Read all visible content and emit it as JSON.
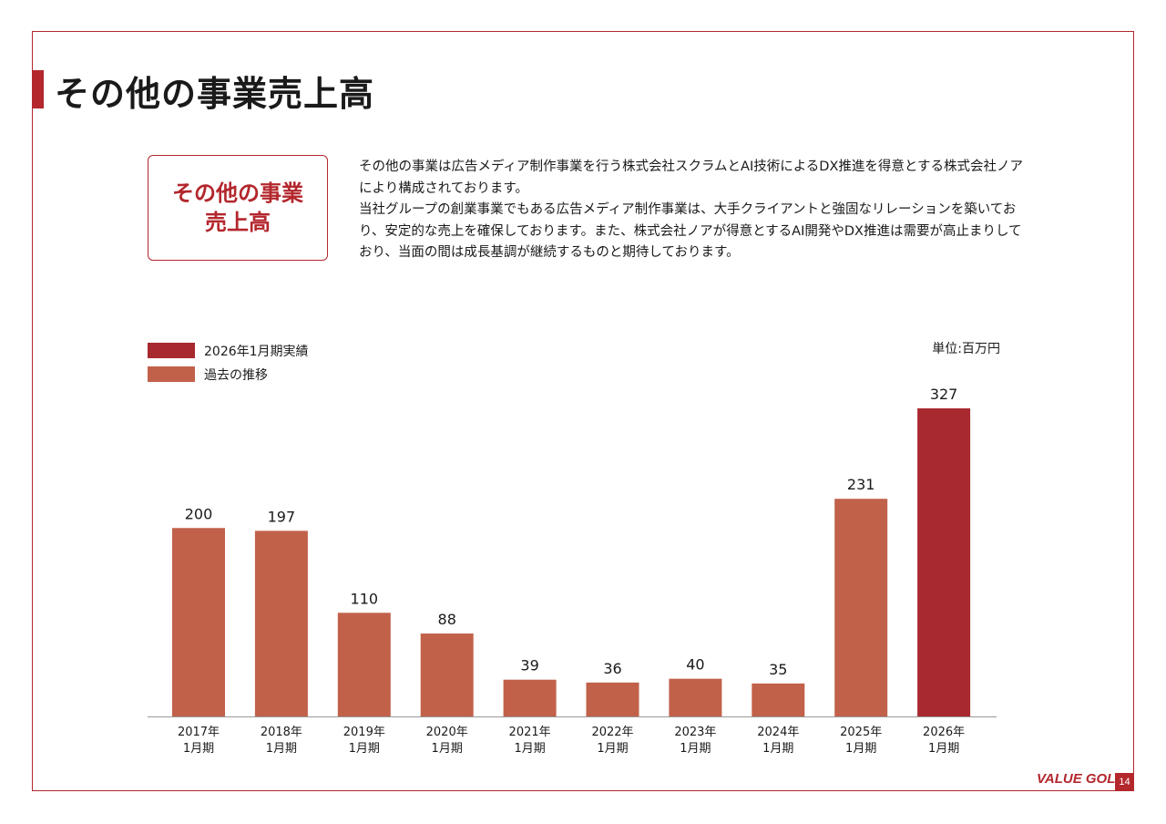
{
  "page": {
    "title": "その他の事業売上高",
    "label_box": [
      "その他の事業",
      "売上高"
    ],
    "description": [
      "その他の事業は広告メディア制作事業を行う株式会社スクラムとAI技術によるDX推進を得意とする株式会社ノアにより構成されております。",
      "当社グループの創業事業でもある広告メディア制作事業は、大手クライアントと強固なリレーションを築いており、安定的な売上を確保しております。また、株式会社ノアが得意とするAI開発やDX推進は需要が高止まりしており、当面の間は成長基調が継続するものと期待しております。"
    ],
    "logo": "VALUE GOLF",
    "page_number": "14"
  },
  "colors": {
    "accent": "#b3272d",
    "actual": "#a8292f",
    "past": "#c1614a",
    "axis": "#999999"
  },
  "chart_data": {
    "type": "bar",
    "unit": "単位:百万円",
    "legend": [
      {
        "name": "2026年1月期実績",
        "color": "#a8292f"
      },
      {
        "name": "過去の推移",
        "color": "#c1614a"
      }
    ],
    "categories": [
      [
        "2017年",
        "1月期"
      ],
      [
        "2018年",
        "1月期"
      ],
      [
        "2019年",
        "1月期"
      ],
      [
        "2020年",
        "1月期"
      ],
      [
        "2021年",
        "1月期"
      ],
      [
        "2022年",
        "1月期"
      ],
      [
        "2023年",
        "1月期"
      ],
      [
        "2024年",
        "1月期"
      ],
      [
        "2025年",
        "1月期"
      ],
      [
        "2026年",
        "1月期"
      ]
    ],
    "values": [
      200,
      197,
      110,
      88,
      39,
      36,
      40,
      35,
      231,
      327
    ],
    "series_index": [
      1,
      1,
      1,
      1,
      1,
      1,
      1,
      1,
      1,
      0
    ],
    "ylim": [
      0,
      327
    ]
  }
}
